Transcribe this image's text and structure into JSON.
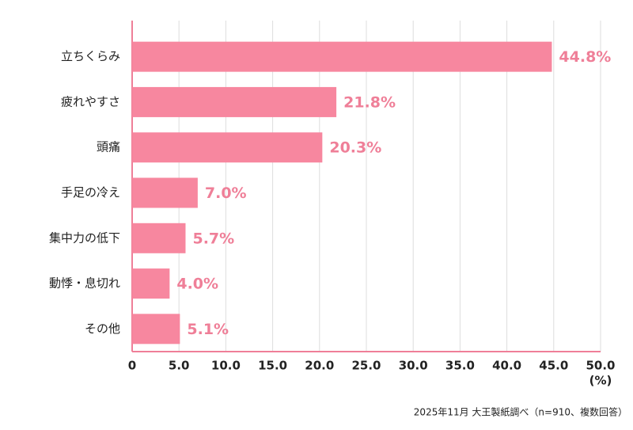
{
  "chart_data": {
    "type": "barh",
    "categories": [
      "立ちくらみ",
      "疲れやすさ",
      "頭痛",
      "手足の冷え",
      "集中力の低下",
      "動悸・息切れ",
      "その他"
    ],
    "values": [
      44.8,
      21.8,
      20.3,
      7.0,
      5.7,
      4.0,
      5.1
    ],
    "value_labels": [
      "44.8%",
      "21.8%",
      "20.3%",
      "7.0%",
      "5.7%",
      "4.0%",
      "5.1%"
    ],
    "color": "#f7879f",
    "xlim": [
      0,
      50
    ],
    "xticks": [
      0,
      {
        "value": 5,
        "label": "5.0"
      },
      {
        "value": 10,
        "label": "10.0"
      },
      {
        "value": 15,
        "label": "15.0"
      },
      {
        "value": 20,
        "label": "20.0"
      },
      {
        "value": 25,
        "label": "25.0"
      },
      {
        "value": 30,
        "label": "30.0"
      },
      {
        "value": 35,
        "label": "35.0"
      },
      {
        "value": 40,
        "label": "40.0"
      },
      {
        "value": 45,
        "label": "45.0"
      },
      {
        "value": 50,
        "label": "50.0"
      }
    ],
    "xlabel": "(%)",
    "source": "2025年11月 大王製紙調べ（n=910、複数回答）",
    "grid": true
  }
}
